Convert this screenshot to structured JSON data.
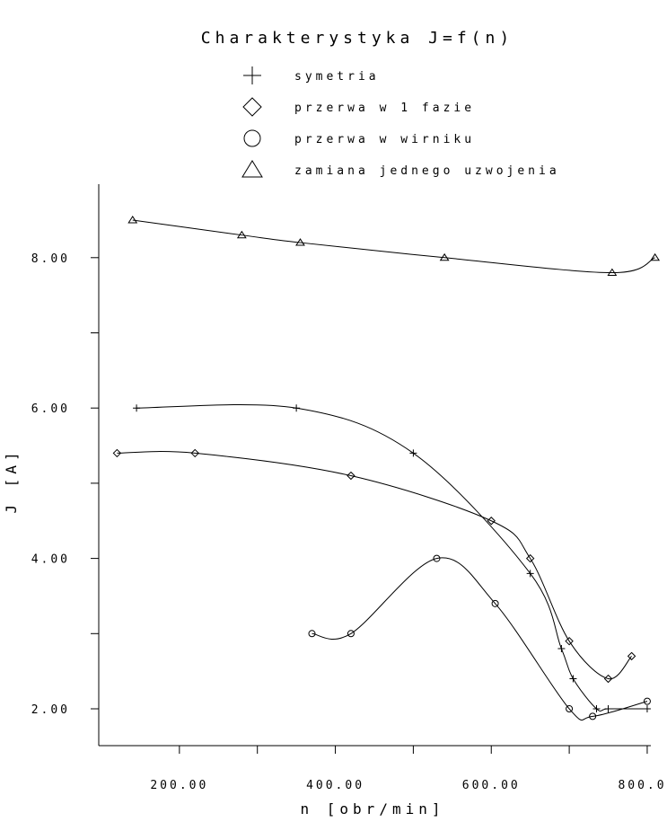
{
  "chart_data": {
    "type": "line",
    "title": "Charakterystyka J=f(n)",
    "xlabel": "n [obr/min]",
    "ylabel": "J [A]",
    "xlim": [
      110,
      810
    ],
    "ylim": [
      1.4,
      9.0
    ],
    "x_ticks": [
      {
        "value": 200,
        "label": "200.00"
      },
      {
        "value": 400,
        "label": "400.00"
      },
      {
        "value": 600,
        "label": "600.00"
      },
      {
        "value": 800,
        "label": "800.00"
      }
    ],
    "x_minor": [
      300,
      500,
      700
    ],
    "y_ticks": [
      {
        "value": 2,
        "label": "2.00"
      },
      {
        "value": 4,
        "label": "4.00"
      },
      {
        "value": 6,
        "label": "6.00"
      },
      {
        "value": 8,
        "label": "8.00"
      }
    ],
    "y_minor": [
      3,
      5,
      7
    ],
    "legend_position": "top-center",
    "grid": false,
    "series": [
      {
        "name": "symetria",
        "marker": "plus",
        "x": [
          145,
          350,
          500,
          650,
          690,
          705,
          735,
          750,
          800
        ],
        "y": [
          6.0,
          6.0,
          5.4,
          3.8,
          2.8,
          2.4,
          2.0,
          2.0,
          2.0
        ]
      },
      {
        "name": "przerwa w 1 fazie",
        "marker": "diamond",
        "x": [
          120,
          220,
          420,
          600,
          650,
          700,
          750,
          780
        ],
        "y": [
          5.4,
          5.4,
          5.1,
          4.5,
          4.0,
          2.9,
          2.4,
          2.7
        ]
      },
      {
        "name": "przerwa w wirniku",
        "marker": "circle",
        "x": [
          370,
          420,
          530,
          605,
          700,
          730,
          800
        ],
        "y": [
          3.0,
          3.0,
          4.0,
          3.4,
          2.0,
          1.9,
          2.1
        ]
      },
      {
        "name": "zamiana jednego uzwojenia",
        "marker": "triangle",
        "x": [
          140,
          280,
          355,
          540,
          755,
          810
        ],
        "y": [
          8.5,
          8.3,
          8.2,
          8.0,
          7.8,
          8.0
        ]
      }
    ]
  }
}
